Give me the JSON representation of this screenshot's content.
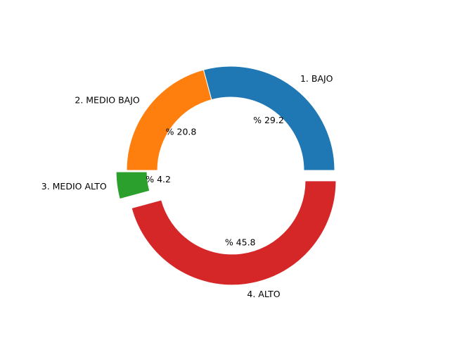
{
  "chart_data": {
    "type": "pie",
    "style": "donut",
    "title": "",
    "direction": "counterclockwise",
    "start_angle_deg": 0,
    "slices": [
      {
        "label": "1. BAJO",
        "value": 29.2,
        "pct_label": "% 29.2",
        "color": "#1f77b4",
        "exploded": false
      },
      {
        "label": "2. MEDIO BAJO",
        "value": 20.8,
        "pct_label": "% 20.8",
        "color": "#ff7f0e",
        "exploded": false
      },
      {
        "label": "3. MEDIO ALTO",
        "value": 4.2,
        "pct_label": "% 4.2",
        "color": "#2ca02c",
        "exploded": true
      },
      {
        "label": "4. ALTO",
        "value": 45.8,
        "pct_label": "% 45.8",
        "color": "#d62728",
        "exploded": true
      }
    ]
  }
}
